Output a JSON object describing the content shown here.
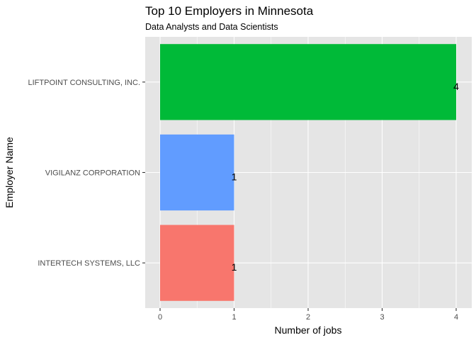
{
  "chart_data": {
    "type": "bar",
    "orientation": "horizontal",
    "title": "Top 10 Employers in Minnesota",
    "subtitle": "Data Analysts and Data Scientists",
    "xlabel": "Number of jobs",
    "ylabel": "Employer Name",
    "categories": [
      "INTERTECH SYSTEMS, LLC",
      "VIGILANZ CORPORATION",
      "LIFTPOINT CONSULTING, INC."
    ],
    "values": [
      1,
      1,
      4
    ],
    "data_labels": [
      "1",
      "1",
      "4"
    ],
    "bar_colors": [
      "#F8766D",
      "#619CFF",
      "#00BA38"
    ],
    "xlim": [
      0,
      4
    ],
    "xticks": [
      "0",
      "1",
      "2",
      "3",
      "4"
    ],
    "grid": true,
    "legend": "none",
    "panel_background": "#E5E5E5",
    "grid_color": "#FFFFFF"
  }
}
